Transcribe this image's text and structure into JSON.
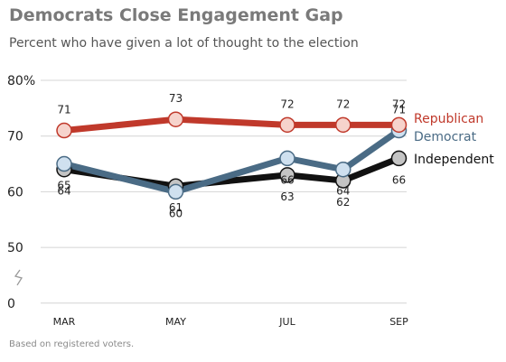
{
  "title": "Democrats Close Engagement Gap",
  "subtitle": "Percent who have given a lot of thought to the election",
  "note": "Based on registered voters.",
  "chart_data": {
    "type": "line",
    "x_positions": [
      0,
      2,
      4,
      5,
      6
    ],
    "xticks": [
      {
        "pos": 0,
        "label": "MAR"
      },
      {
        "pos": 2,
        "label": "MAY"
      },
      {
        "pos": 4,
        "label": "JUL"
      },
      {
        "pos": 6,
        "label": "SEP"
      }
    ],
    "yticks": [
      "80%",
      "70",
      "60",
      "50",
      "0"
    ],
    "axis_break": true,
    "ylim": [
      50,
      80
    ],
    "grid": true,
    "legend_placement": "right, at line ends",
    "series": [
      {
        "name": "Republican",
        "values": [
          71,
          73,
          72,
          72,
          72
        ],
        "color": "#c0392b",
        "marker_fill": "#f6d3cc"
      },
      {
        "name": "Democrat",
        "values": [
          65,
          60,
          66,
          64,
          71
        ],
        "color": "#4a6b85",
        "marker_fill": "#cfe0ef"
      },
      {
        "name": "Independent",
        "values": [
          64,
          61,
          63,
          62,
          66
        ],
        "color": "#111111",
        "marker_fill": "#c4c4c4"
      }
    ]
  }
}
